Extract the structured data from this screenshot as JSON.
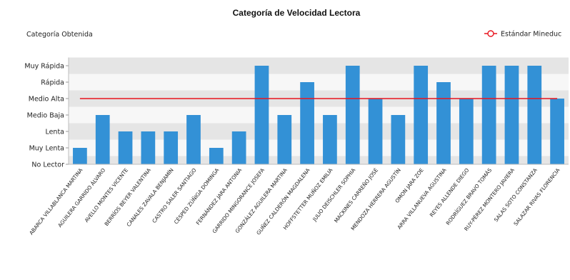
{
  "chart_data": {
    "type": "bar",
    "title": "Categoría de Velocidad Lectora",
    "ylabel": "Categoría Obtenida",
    "xlabel": "",
    "y_categories": [
      "No Lector",
      "Muy Lenta",
      "Lenta",
      "Medio Baja",
      "Medio Alta",
      "Rápida",
      "Muy Rápida"
    ],
    "ylim": [
      0,
      6.5
    ],
    "grid": "alternating horizontal bands",
    "legend_position": "top-right",
    "categories": [
      "ABARCA VILLABLANCA MARTINA",
      "AGUILERA GARRIDO ÁLVARO",
      "AVELLO MONTES VICENTE",
      "BERRÍOS BEYER VALENTINA",
      "CANALES ZAVALA BENJAMÍN",
      "CASTRO SALER SANTIAGO",
      "CÉSPED ZÚÑIGA DOMINGA",
      "FERNÁNDEZ JARA ANTONIA",
      "GARRIDO MINGORANCE JOSEFA",
      "GONZÁLEZ AGUILERA MARTINA",
      "GUÑEZ CALDERÓN MAGDALENA",
      "HOFFSTETTER MUÑOZ EMILIA",
      "JULIO DEISCHLER SOPHIA",
      "MACKINES CARREÑO JOSÉ",
      "MENDOZA HERRERA AGUSTÍN",
      "OMON JARA ZOE",
      "ARRA VILLANUEVA AGUSTINA",
      "REYES ALLENDE DIEGO",
      "RODRÍGUEZ BRAVO TOMÁS",
      "RUY-PÉREZ MONTERO JAVIERA",
      "SALAS SOTO CONSTANZA",
      "SALAZAR RIVAS FLORENCIA"
    ],
    "series": [
      {
        "name": "",
        "color": "#3391d6",
        "values": [
          1,
          3,
          2,
          2,
          2,
          3,
          1,
          2,
          6,
          3,
          5,
          3,
          6,
          4,
          3,
          6,
          5,
          4,
          6,
          6,
          6,
          4
        ]
      },
      {
        "name": "Estándar Mineduc",
        "type": "line",
        "color": "#e8141e",
        "values": [
          4,
          4,
          4,
          4,
          4,
          4,
          4,
          4,
          4,
          4,
          4,
          4,
          4,
          4,
          4,
          4,
          4,
          4,
          4,
          4,
          4,
          4
        ]
      }
    ]
  }
}
